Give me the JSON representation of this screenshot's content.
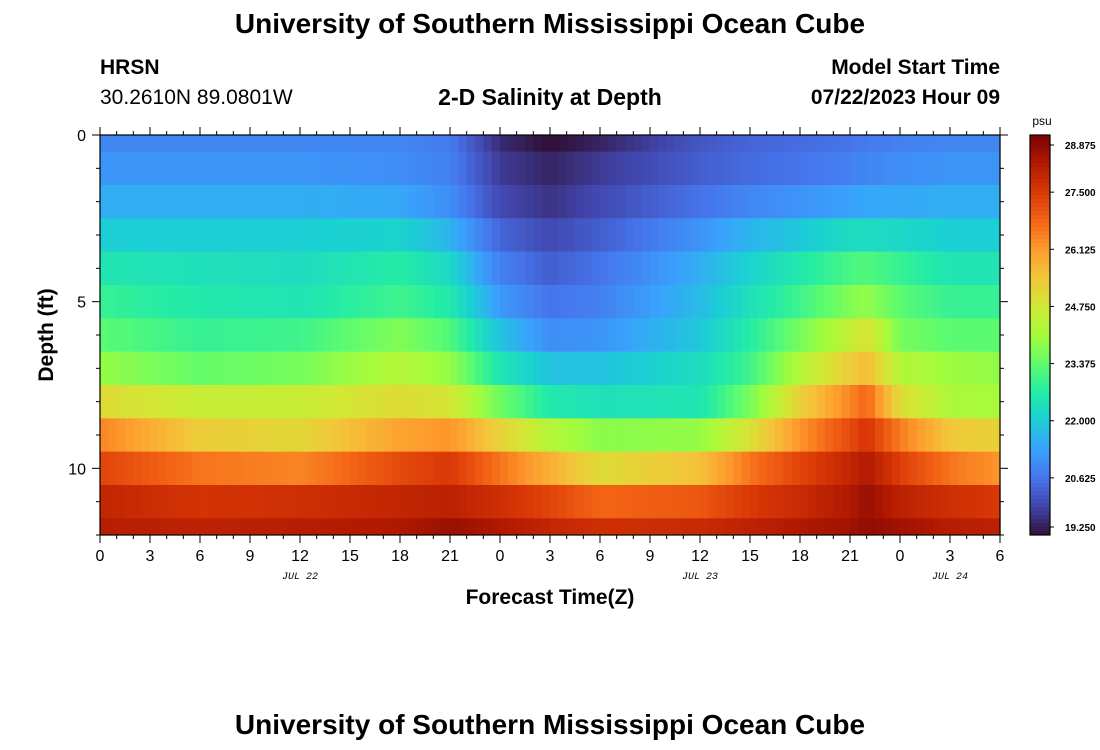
{
  "page": {
    "title_top": "University of Southern Mississippi Ocean Cube",
    "title_bottom": "University of Southern Mississippi Ocean Cube",
    "station_name": "HRSN",
    "station_coords": "30.2610N  89.0801W",
    "plot_title": "2-D Salinity at Depth",
    "model_start_label": "Model Start Time",
    "model_start_value": "07/22/2023 Hour 09"
  },
  "chart_data": {
    "type": "heatmap",
    "title": "2-D Salinity at Depth",
    "xlabel": "Forecast Time(Z)",
    "ylabel": "Depth (ft)",
    "x_hours_from_start": [
      0,
      54
    ],
    "x_tick_labels": [
      "0",
      "3",
      "6",
      "9",
      "12",
      "15",
      "18",
      "21",
      "0",
      "3",
      "6",
      "9",
      "12",
      "15",
      "18",
      "21",
      "0",
      "3",
      "6"
    ],
    "date_labels": [
      {
        "label": "JUL 22",
        "hour_offset": 12
      },
      {
        "label": "JUL 23",
        "hour_offset": 36
      },
      {
        "label": "JUL 24",
        "hour_offset": 51
      }
    ],
    "ylim": [
      0,
      12
    ],
    "y_tick_labels": [
      "0",
      "5",
      "10"
    ],
    "y_ticks": [
      0,
      5,
      10
    ],
    "depth_layers_ft": [
      0,
      1,
      2,
      3,
      4,
      5,
      6,
      7,
      8,
      9,
      10,
      11,
      12
    ],
    "colorbar": {
      "unit": "psu",
      "min": 19.25,
      "max": 28.875,
      "tick_labels": [
        "28.875",
        "27.500",
        "26.125",
        "24.750",
        "23.375",
        "22.000",
        "20.625",
        "19.250"
      ]
    },
    "columns_hour": [
      0,
      6,
      12,
      18,
      21,
      24,
      27,
      30,
      36,
      39,
      42,
      45,
      46,
      48,
      51,
      54
    ],
    "salinity_by_layer": [
      [
        20.9,
        20.9,
        20.9,
        20.9,
        20.7,
        19.6,
        19.2,
        19.5,
        20.2,
        20.4,
        20.5,
        20.6,
        20.7,
        20.8,
        20.9,
        20.9
      ],
      [
        21.1,
        21.1,
        21.1,
        21.0,
        20.8,
        19.8,
        19.5,
        19.8,
        20.3,
        20.5,
        20.6,
        20.8,
        20.9,
        21.0,
        21.1,
        21.1
      ],
      [
        21.5,
        21.5,
        21.5,
        21.4,
        21.0,
        20.0,
        19.7,
        20.0,
        20.6,
        20.9,
        21.1,
        21.3,
        21.4,
        21.4,
        21.5,
        21.5
      ],
      [
        22.0,
        22.0,
        22.0,
        22.1,
        21.6,
        20.4,
        20.0,
        20.3,
        21.1,
        21.6,
        21.9,
        22.3,
        22.3,
        22.2,
        22.0,
        22.0
      ],
      [
        22.5,
        22.4,
        22.3,
        22.7,
        22.2,
        20.8,
        20.3,
        20.6,
        21.5,
        22.1,
        22.6,
        23.1,
        23.2,
        22.9,
        22.5,
        22.5
      ],
      [
        22.9,
        22.6,
        22.5,
        23.0,
        22.6,
        21.2,
        20.6,
        20.8,
        21.7,
        22.4,
        23.0,
        23.7,
        23.9,
        23.3,
        22.9,
        22.9
      ],
      [
        23.3,
        22.9,
        23.0,
        23.7,
        23.2,
        21.8,
        21.0,
        21.1,
        21.9,
        22.7,
        23.6,
        24.5,
        24.9,
        23.6,
        23.3,
        23.3
      ],
      [
        23.9,
        23.4,
        23.6,
        24.3,
        23.9,
        22.5,
        21.8,
        21.8,
        22.3,
        23.0,
        24.3,
        25.3,
        25.6,
        24.3,
        24.0,
        23.9
      ],
      [
        25.0,
        24.6,
        24.6,
        25.0,
        24.8,
        23.5,
        22.6,
        22.4,
        22.5,
        23.6,
        25.2,
        26.4,
        26.8,
        25.0,
        24.2,
        24.1
      ],
      [
        26.4,
        25.3,
        25.1,
        26.0,
        26.2,
        25.2,
        24.3,
        23.8,
        23.9,
        24.9,
        26.2,
        27.2,
        27.6,
        26.5,
        25.4,
        25.2
      ],
      [
        27.3,
        26.6,
        26.4,
        27.2,
        27.5,
        26.6,
        25.8,
        25.0,
        25.5,
        26.6,
        27.3,
        27.9,
        28.2,
        27.4,
        26.6,
        26.2
      ],
      [
        27.9,
        27.6,
        27.7,
        27.9,
        28.0,
        27.7,
        27.3,
        26.8,
        27.0,
        27.5,
        27.8,
        28.2,
        28.5,
        28.0,
        27.7,
        27.5
      ],
      [
        28.1,
        28.0,
        28.1,
        28.2,
        28.5,
        28.2,
        27.9,
        27.7,
        27.8,
        28.0,
        28.2,
        28.4,
        28.6,
        28.4,
        28.1,
        28.0
      ]
    ],
    "colormap": [
      "#30123b",
      "#4145ab",
      "#4675ed",
      "#39a2fc",
      "#1bcfd4",
      "#24eca6",
      "#61fc6c",
      "#a4fc3b",
      "#d1e834",
      "#f3c63a",
      "#fe9b2d",
      "#f36315",
      "#d93806",
      "#b11901",
      "#7a0403"
    ]
  }
}
